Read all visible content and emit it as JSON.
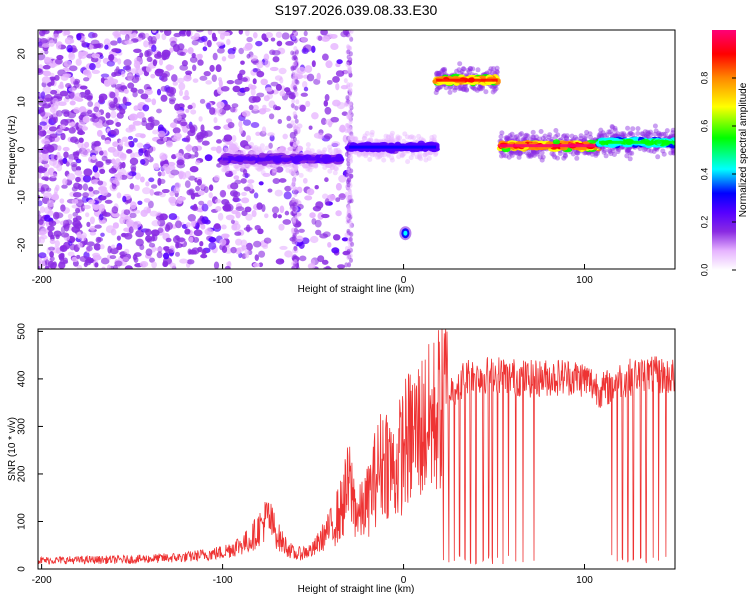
{
  "title": "S197.2026.039.08.33.E30",
  "colors": {
    "snr_line": "#ee3333",
    "axes": "#000000",
    "colormap": [
      "#ffffff",
      "#e6b3ff",
      "#8a2be2",
      "#5500ff",
      "#0000ff",
      "#00ffff",
      "#00ff00",
      "#ffff00",
      "#ff8800",
      "#ff0000",
      "#ff0077"
    ]
  },
  "chart_data": [
    {
      "type": "heatmap",
      "xlabel": "Height of straight line (km)",
      "ylabel": "Frequency (Hz)",
      "xlim": [
        -202,
        150
      ],
      "ylim": [
        -25,
        25
      ],
      "xticks": [
        -200,
        -100,
        0,
        100
      ],
      "yticks": [
        -20,
        -10,
        0,
        10,
        20
      ],
      "colorbar": {
        "label": "Normalized spectral amplitude",
        "range": [
          0,
          1
        ],
        "ticks": [
          0.0,
          0.2,
          0.4,
          0.6,
          0.8
        ]
      },
      "features": [
        {
          "kind": "scattered-noise",
          "x_range": [
            -202,
            -30
          ],
          "y_range": [
            -25,
            25
          ],
          "amplitude": 0.15
        },
        {
          "kind": "band",
          "x_range": [
            -100,
            -35
          ],
          "y_center": -2,
          "amplitude": 0.3
        },
        {
          "kind": "band",
          "x_range": [
            -30,
            18
          ],
          "y_center": 0.5,
          "amplitude": 0.35
        },
        {
          "kind": "band",
          "x_range": [
            18,
            52
          ],
          "y_center": 14.5,
          "amplitude": 0.9
        },
        {
          "kind": "spot",
          "x": 1,
          "y": -17.5,
          "amplitude": 0.35
        },
        {
          "kind": "band",
          "x_range": [
            53,
            108
          ],
          "y_center": 0.8,
          "amplitude": 0.95
        },
        {
          "kind": "band",
          "x_range": [
            108,
            150
          ],
          "y_center": 1.5,
          "amplitude": 0.6
        }
      ]
    },
    {
      "type": "line",
      "xlabel": "Height of straight line (km)",
      "ylabel": "SNR (10 * v/v)",
      "xlim": [
        -202,
        150
      ],
      "ylim": [
        0,
        505
      ],
      "xticks": [
        -200,
        -100,
        0,
        100
      ],
      "yticks": [
        0,
        100,
        200,
        300,
        400,
        500
      ],
      "baseline": [
        {
          "x": -202,
          "y": 18
        },
        {
          "x": -150,
          "y": 20
        },
        {
          "x": -120,
          "y": 25
        },
        {
          "x": -100,
          "y": 35
        },
        {
          "x": -85,
          "y": 60
        },
        {
          "x": -75,
          "y": 110
        },
        {
          "x": -68,
          "y": 60
        },
        {
          "x": -60,
          "y": 30
        },
        {
          "x": -50,
          "y": 40
        },
        {
          "x": -42,
          "y": 80
        },
        {
          "x": -35,
          "y": 120
        },
        {
          "x": -30,
          "y": 180
        },
        {
          "x": -25,
          "y": 110
        },
        {
          "x": -20,
          "y": 140
        },
        {
          "x": -15,
          "y": 200
        },
        {
          "x": -10,
          "y": 240
        },
        {
          "x": -5,
          "y": 200
        },
        {
          "x": 0,
          "y": 260
        },
        {
          "x": 5,
          "y": 280
        },
        {
          "x": 10,
          "y": 300
        },
        {
          "x": 15,
          "y": 310
        },
        {
          "x": 20,
          "y": 340
        },
        {
          "x": 25,
          "y": 370
        },
        {
          "x": 30,
          "y": 390
        },
        {
          "x": 35,
          "y": 405
        },
        {
          "x": 50,
          "y": 410
        },
        {
          "x": 70,
          "y": 400
        },
        {
          "x": 90,
          "y": 405
        },
        {
          "x": 100,
          "y": 400
        },
        {
          "x": 110,
          "y": 375
        },
        {
          "x": 118,
          "y": 395
        },
        {
          "x": 130,
          "y": 410
        },
        {
          "x": 150,
          "y": 405
        }
      ],
      "dropouts_x": [
        22,
        25,
        28,
        31,
        34,
        37,
        40,
        44,
        47,
        49,
        52,
        55,
        58,
        62,
        66,
        72,
        115,
        118,
        121,
        124,
        127,
        131,
        134,
        138,
        141,
        145
      ]
    }
  ]
}
